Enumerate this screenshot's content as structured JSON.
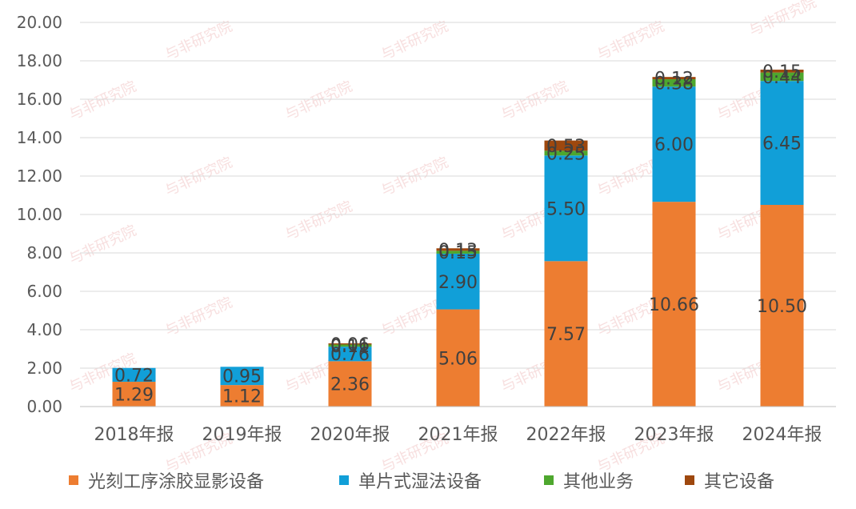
{
  "chart_data": {
    "type": "bar",
    "stacked": true,
    "categories": [
      "2018年报",
      "2019年报",
      "2020年报",
      "2021年报",
      "2022年报",
      "2023年报",
      "2024年报"
    ],
    "series": [
      {
        "name": "光刻工序涂胶显影设备",
        "color": "#ED7D31",
        "values": [
          1.29,
          1.12,
          2.36,
          5.06,
          7.57,
          10.66,
          10.5
        ]
      },
      {
        "name": "单片式湿法设备",
        "color": "#119FD8",
        "values": [
          0.72,
          0.95,
          0.76,
          2.9,
          5.5,
          6.0,
          6.45
        ]
      },
      {
        "name": "其他业务",
        "color": "#4EA72E",
        "values": [
          null,
          null,
          0.11,
          0.15,
          0.25,
          0.38,
          0.44
        ]
      },
      {
        "name": "其它设备",
        "color": "#9E480E",
        "values": [
          null,
          null,
          0.06,
          0.13,
          0.53,
          0.12,
          0.15
        ]
      }
    ],
    "ylim": [
      0,
      20
    ],
    "yticks": [
      "0.00",
      "2.00",
      "4.00",
      "6.00",
      "8.00",
      "10.00",
      "12.00",
      "14.00",
      "16.00",
      "18.00",
      "20.00"
    ],
    "grid": true,
    "legend": "bottom",
    "title": "",
    "xlabel": "",
    "ylabel": ""
  },
  "watermark": "与非研究院"
}
